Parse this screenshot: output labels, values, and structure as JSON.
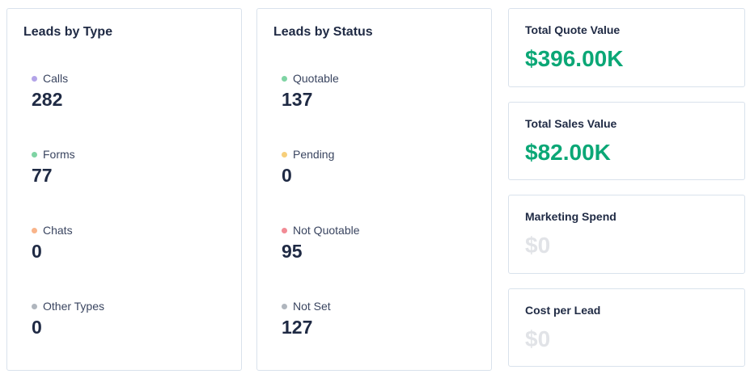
{
  "leads_by_type": {
    "title": "Leads by Type",
    "items": [
      {
        "label": "Calls",
        "value": "282",
        "color": "#b3a4e8"
      },
      {
        "label": "Forms",
        "value": "77",
        "color": "#7fd4a4"
      },
      {
        "label": "Chats",
        "value": "0",
        "color": "#f9b48a"
      },
      {
        "label": "Other Types",
        "value": "0",
        "color": "#b0b6be"
      }
    ]
  },
  "leads_by_status": {
    "title": "Leads by Status",
    "items": [
      {
        "label": "Quotable",
        "value": "137",
        "color": "#7fd4a4"
      },
      {
        "label": "Pending",
        "value": "0",
        "color": "#f7cf7a"
      },
      {
        "label": "Not Quotable",
        "value": "95",
        "color": "#f28b95"
      },
      {
        "label": "Not Set",
        "value": "127",
        "color": "#b0b6be"
      }
    ]
  },
  "metrics": [
    {
      "label": "Total Quote Value",
      "value": "$396.00K",
      "color": "#0ba776"
    },
    {
      "label": "Total Sales Value",
      "value": "$82.00K",
      "color": "#0ba776"
    },
    {
      "label": "Marketing Spend",
      "value": "$0",
      "color": "#e1e3e7"
    },
    {
      "label": "Cost per Lead",
      "value": "$0",
      "color": "#e1e3e7"
    }
  ]
}
